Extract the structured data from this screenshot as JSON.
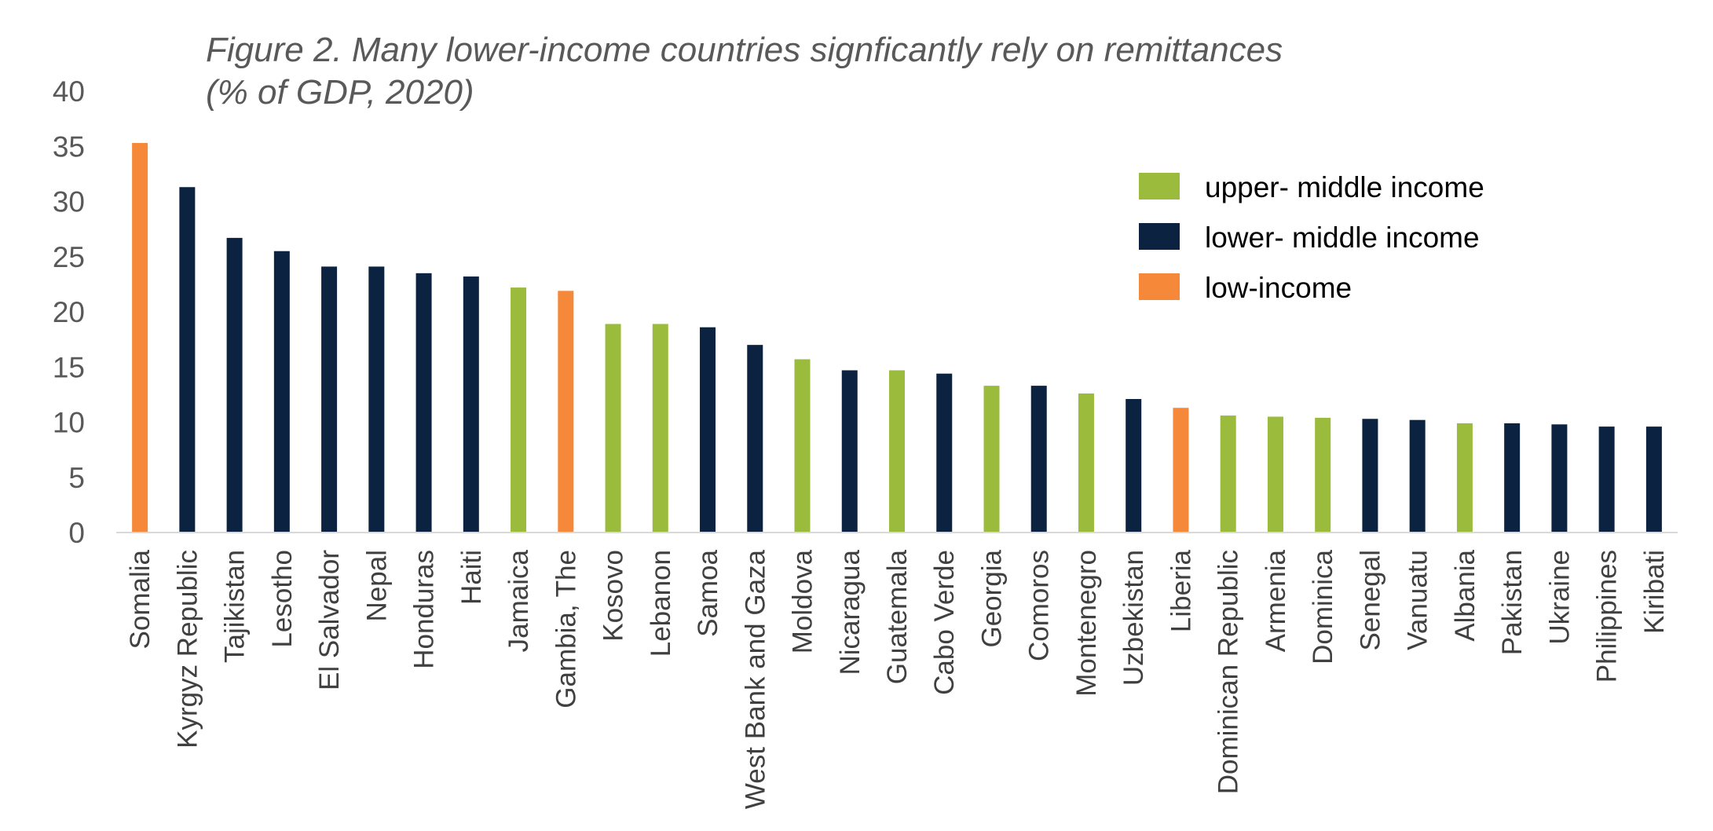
{
  "chart_data": {
    "type": "bar",
    "title": "Figure 2. Many lower-income countries signficantly rely on remittances",
    "subtitle": "(% of GDP, 2020)",
    "xlabel": "",
    "ylabel": "",
    "ylim": [
      0,
      40
    ],
    "yticks": [
      "0",
      "5",
      "10",
      "15",
      "20",
      "25",
      "30",
      "35",
      "40"
    ],
    "grid": false,
    "legend_position": "top-right",
    "groups": [
      {
        "name": "upper- middle income",
        "color": "#9bbb3c"
      },
      {
        "name": "lower- middle income",
        "color": "#0b2240"
      },
      {
        "name": "low-income",
        "color": "#f6883a"
      }
    ],
    "categories": [
      "Somalia",
      "Kyrgyz Republic",
      "Tajikistan",
      "Lesotho",
      "El Salvador",
      "Nepal",
      "Honduras",
      "Haiti",
      "Jamaica",
      "Gambia, The",
      "Kosovo",
      "Lebanon",
      "Samoa",
      "West Bank and Gaza",
      "Moldova",
      "Nicaragua",
      "Guatemala",
      "Cabo Verde",
      "Georgia",
      "Comoros",
      "Montenegro",
      "Uzbekistan",
      "Liberia",
      "Dominican Republic",
      "Armenia",
      "Dominica",
      "Senegal",
      "Vanuatu",
      "Albania",
      "Pakistan",
      "Ukraine",
      "Philippines",
      "Kiribati"
    ],
    "values": [
      35.3,
      31.3,
      26.7,
      25.5,
      24.1,
      24.1,
      23.5,
      23.2,
      22.2,
      21.9,
      18.9,
      18.9,
      18.6,
      17.0,
      15.7,
      14.7,
      14.7,
      14.4,
      13.3,
      13.3,
      12.6,
      12.1,
      11.3,
      10.6,
      10.5,
      10.4,
      10.3,
      10.2,
      9.9,
      9.9,
      9.8,
      9.6,
      9.6
    ],
    "group_index": [
      2,
      1,
      1,
      1,
      1,
      1,
      1,
      1,
      0,
      2,
      0,
      0,
      1,
      1,
      0,
      1,
      0,
      1,
      0,
      1,
      0,
      1,
      2,
      0,
      0,
      0,
      1,
      1,
      0,
      1,
      1,
      1,
      1
    ]
  }
}
